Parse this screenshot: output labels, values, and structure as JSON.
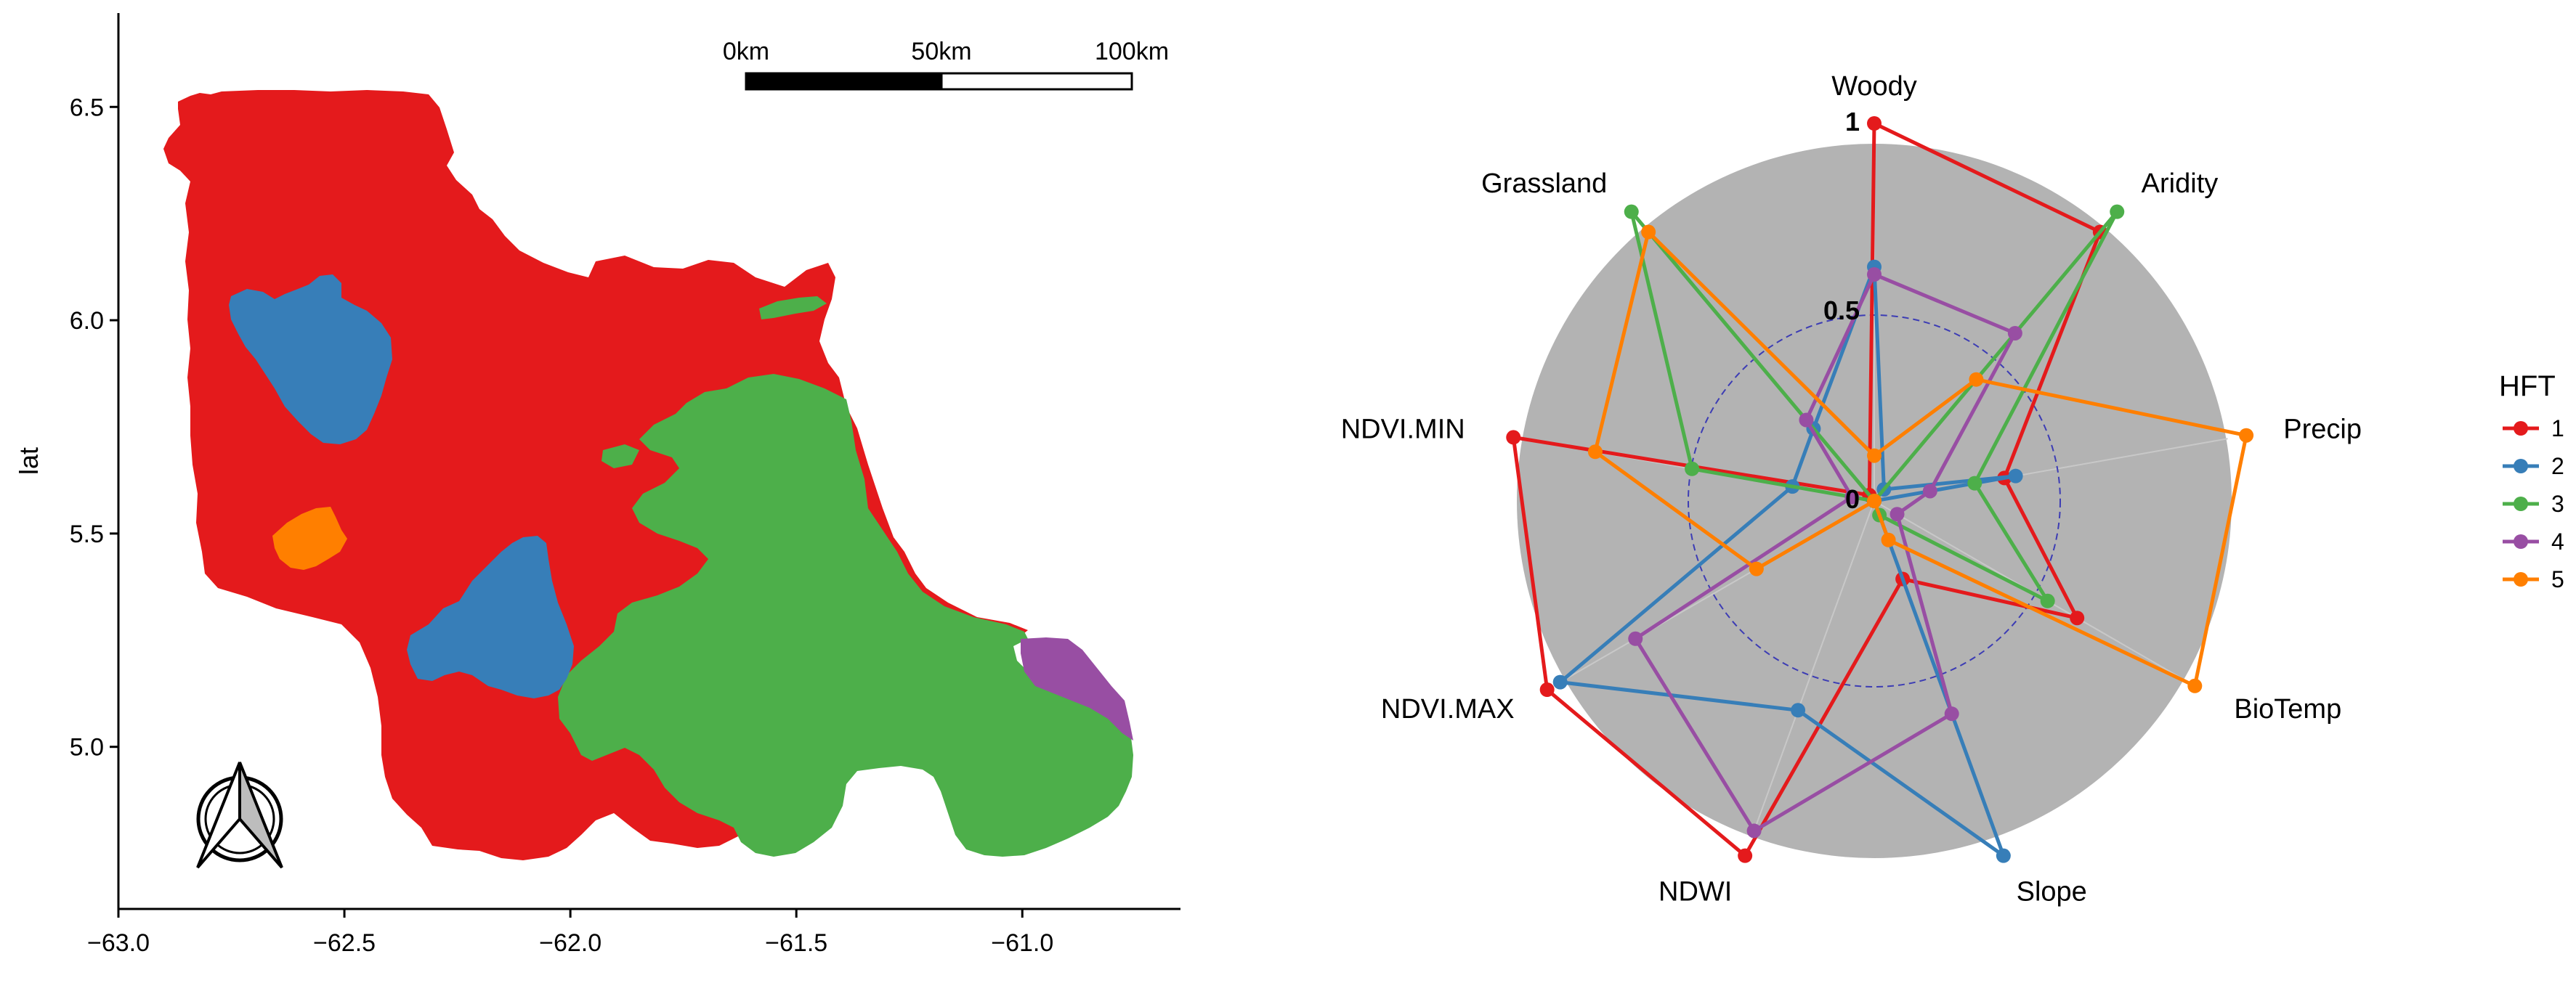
{
  "map_panel": {
    "ylabel": "lat",
    "x_ticks": [
      "−63.0",
      "−62.5",
      "−62.0",
      "−61.5",
      "−61.0"
    ],
    "y_ticks": [
      "6.5",
      "6.0",
      "5.5",
      "5.0"
    ],
    "x_tick_values": [
      -63.0,
      -62.5,
      -62.0,
      -61.5,
      -61.0
    ],
    "y_tick_values": [
      6.5,
      6.0,
      5.5,
      5.0
    ],
    "xlim": [
      -63.0,
      -60.65
    ],
    "ylim": [
      4.62,
      6.72
    ],
    "scale_bar": {
      "labels": [
        "0km",
        "50km",
        "100km"
      ]
    },
    "north_arrow": "north-arrow-icon",
    "region_colors": {
      "1": "#e41a1c",
      "2": "#377eb8",
      "3": "#4daf4a",
      "4": "#984ea3",
      "5": "#ff7f00"
    }
  },
  "chart_data": {
    "type": "radar",
    "axes": [
      "Woody",
      "Aridity",
      "Precip",
      "BioTemp",
      "Slope",
      "NDWI",
      "NDVI.MAX",
      "NDVI.MIN",
      "Grassland"
    ],
    "ring_labels": [
      "0",
      "0.5",
      "1"
    ],
    "rlim": [
      0,
      1
    ],
    "legend": {
      "title": "HFT",
      "position": "right"
    },
    "series": [
      {
        "name": "1",
        "color": "#e41a1c",
        "values": [
          1.0,
          0.93,
          0.35,
          0.62,
          0.22,
          1.0,
          1.0,
          0.97,
          0.02
        ]
      },
      {
        "name": "2",
        "color": "#377eb8",
        "values": [
          0.62,
          0.04,
          0.38,
          0.0,
          1.0,
          0.59,
          0.96,
          0.22,
          0.25
        ]
      },
      {
        "name": "3",
        "color": "#4daf4a",
        "values": [
          0.0,
          1.0,
          0.27,
          0.53,
          0.04,
          0.0,
          0.0,
          0.49,
          1.0
        ]
      },
      {
        "name": "4",
        "color": "#984ea3",
        "values": [
          0.6,
          0.58,
          0.15,
          0.07,
          0.6,
          0.93,
          0.73,
          0.06,
          0.28
        ]
      },
      {
        "name": "5",
        "color": "#ff7f00",
        "values": [
          0.12,
          0.42,
          1.0,
          0.98,
          0.11,
          0.0,
          0.36,
          0.75,
          0.93
        ]
      }
    ]
  }
}
